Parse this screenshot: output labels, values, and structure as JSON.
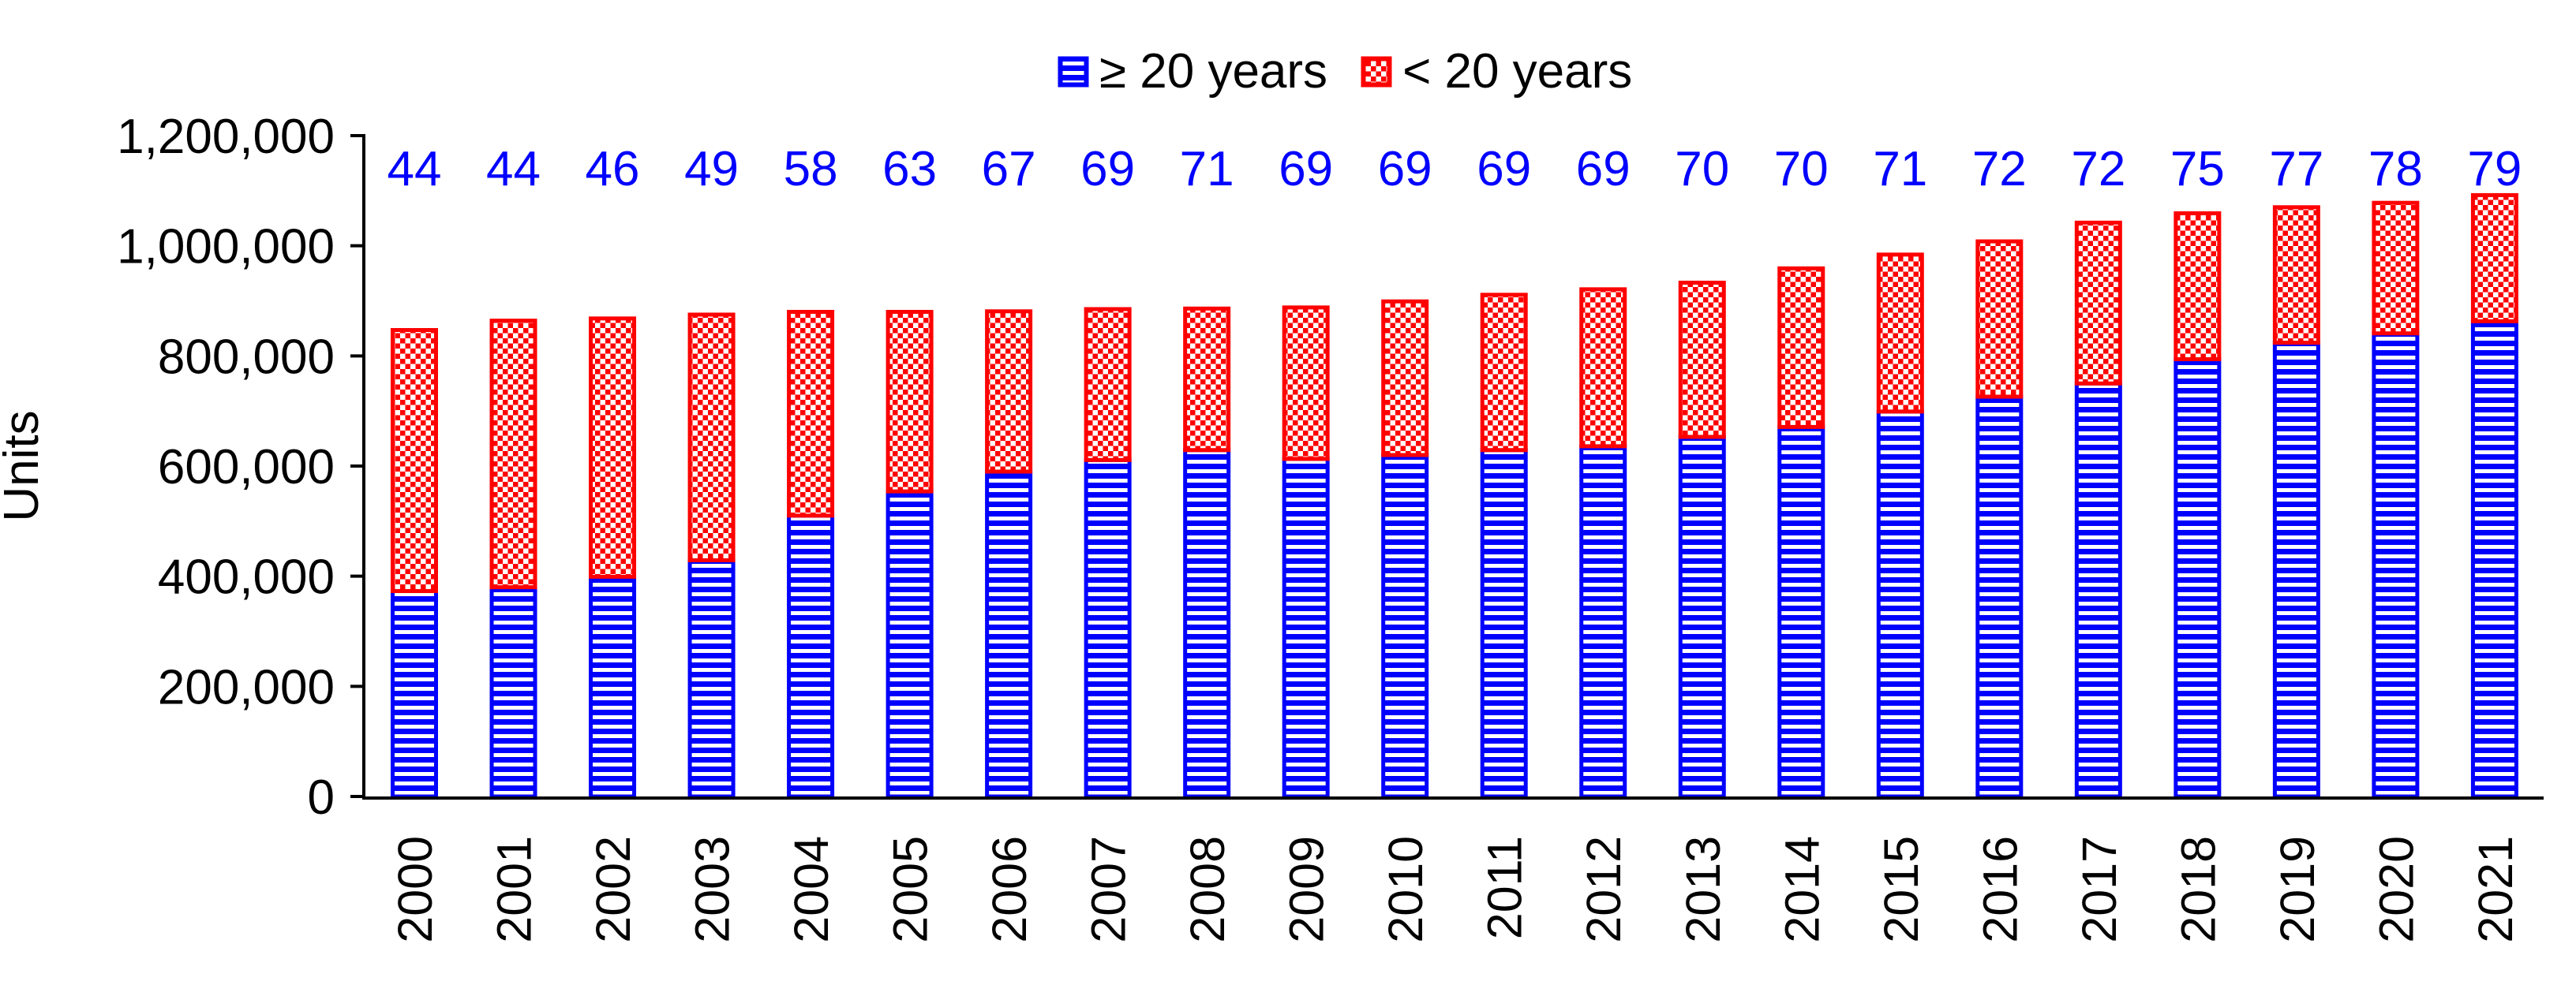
{
  "chart_data": {
    "type": "bar",
    "stacked": true,
    "title": "",
    "xlabel": "",
    "ylabel": "Units",
    "categories": [
      "2000",
      "2001",
      "2002",
      "2003",
      "2004",
      "2005",
      "2006",
      "2007",
      "2008",
      "2009",
      "2010",
      "2011",
      "2012",
      "2013",
      "2014",
      "2015",
      "2016",
      "2017",
      "2018",
      "2019",
      "2020",
      "2021"
    ],
    "series": [
      {
        "name": "≥ 20 years",
        "color": "#0000ff",
        "pattern": "horizontal-stripes",
        "values": [
          373000,
          380000,
          399000,
          429000,
          510000,
          554000,
          590000,
          611000,
          629000,
          613000,
          620000,
          629000,
          636000,
          653000,
          671000,
          699000,
          726000,
          750000,
          794000,
          824000,
          841000,
          863000
        ]
      },
      {
        "name": "< 20 years",
        "color": "#ff0000",
        "pattern": "red-dots",
        "values": [
          474000,
          484000,
          469000,
          446000,
          370000,
          326000,
          291000,
          274000,
          257000,
          275000,
          279000,
          282000,
          285000,
          280000,
          288000,
          285000,
          282000,
          292000,
          265000,
          246000,
          237000,
          229000
        ]
      }
    ],
    "totals": [
      847000,
      864000,
      868000,
      875000,
      880000,
      880000,
      881000,
      885000,
      886000,
      888000,
      899000,
      911000,
      921000,
      933000,
      959000,
      984000,
      1008000,
      1042000,
      1059000,
      1070000,
      1078000,
      1092000
    ],
    "bar_top_labels": [
      "44",
      "44",
      "46",
      "49",
      "58",
      "63",
      "67",
      "69",
      "71",
      "69",
      "69",
      "69",
      "69",
      "70",
      "70",
      "71",
      "72",
      "72",
      "75",
      "77",
      "78",
      "79"
    ],
    "bar_top_labels_color": "#0000ff",
    "y_axis": {
      "min": 0,
      "max": 1200000,
      "tick_step": 200000,
      "tick_labels": [
        "0",
        "200,000",
        "400,000",
        "600,000",
        "800,000",
        "1,000,000",
        "1,200,000"
      ],
      "label": "Units"
    },
    "x_axis": {
      "tick_labels_rotation": -90
    },
    "legend": {
      "position": "top-center",
      "items": [
        {
          "label": "≥ 20 years",
          "swatch": "blue-stripes"
        },
        {
          "label": "< 20 years",
          "swatch": "red-dots"
        }
      ]
    },
    "grid": false,
    "axis_color": "#000000",
    "text_color": "#000000"
  }
}
